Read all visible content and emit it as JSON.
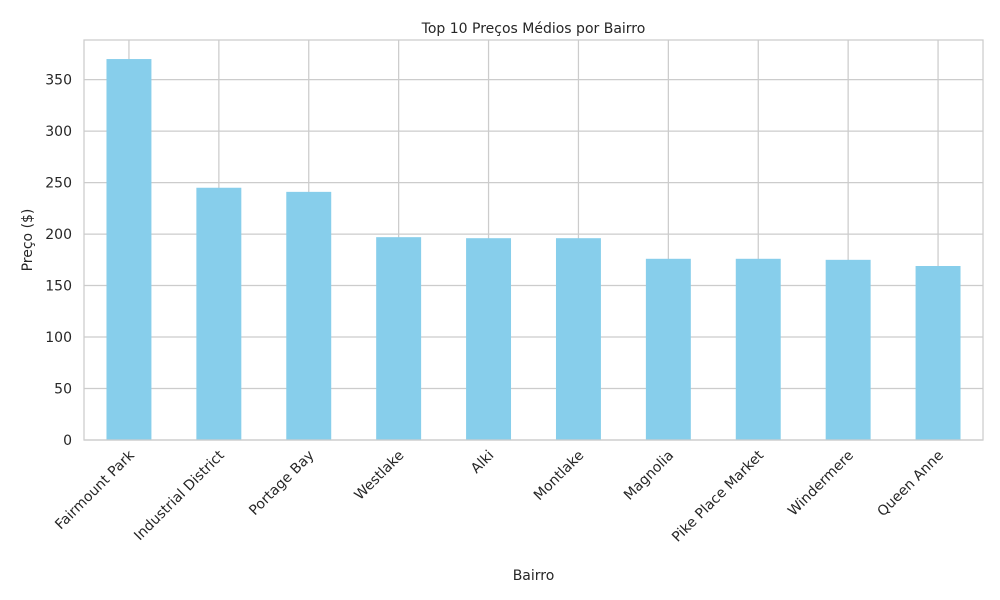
{
  "chart_data": {
    "type": "bar",
    "title": "Top 10 Preços Médios por Bairro",
    "xlabel": "Bairro",
    "ylabel": "Preço ($)",
    "categories": [
      "Fairmount Park",
      "Industrial District",
      "Portage Bay",
      "Westlake",
      "Alki",
      "Montlake",
      "Magnolia",
      "Pike Place Market",
      "Windermere",
      "Queen Anne"
    ],
    "values": [
      370,
      245,
      241,
      197,
      196,
      196,
      176,
      176,
      175,
      169
    ],
    "ylim": [
      0,
      388.5
    ],
    "yticks": [
      0,
      50,
      100,
      150,
      200,
      250,
      300,
      350
    ],
    "grid": true,
    "legend": "none",
    "bar_color": "#87CEEB",
    "grid_color": "#cccccc",
    "text_color": "#262626"
  }
}
